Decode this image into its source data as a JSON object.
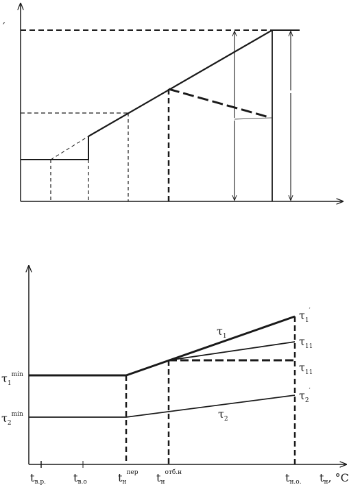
{
  "top_diagram": {
    "axis_mark": "′"
  },
  "bottom_diagram": {
    "left_labels": {
      "tau1_min": {
        "base": "τ",
        "sub": "1",
        "sup": "min"
      },
      "tau2_min": {
        "base": "τ",
        "sub": "2",
        "sup": "min"
      }
    },
    "curve_labels": {
      "tau1": {
        "base": "τ",
        "sub": "1"
      },
      "tau2": {
        "base": "τ",
        "sub": "2"
      }
    },
    "right_labels": {
      "tau1_prime": {
        "base": "τ",
        "sub": "1",
        "prime": "′"
      },
      "tau11_upper": {
        "base": "τ",
        "sub": "11"
      },
      "tau11_lower": {
        "base": "τ",
        "sub": "11"
      },
      "tau2_prime": {
        "base": "τ",
        "sub": "2",
        "prime": "′"
      }
    },
    "x_labels": {
      "t_vr": {
        "base": "t",
        "sub": "в.р."
      },
      "t_vo": {
        "base": "t",
        "sub": "в.о"
      },
      "t_per": {
        "base": "t",
        "sub": "н",
        "sup": "пер"
      },
      "t_otb": {
        "base": "t",
        "sub": "н",
        "sup": "отб.н"
      },
      "t_no": {
        "base": "t",
        "sub": "н.о."
      },
      "t_n": {
        "base": "t",
        "sub": "н",
        "suffix": ", °C"
      }
    }
  }
}
